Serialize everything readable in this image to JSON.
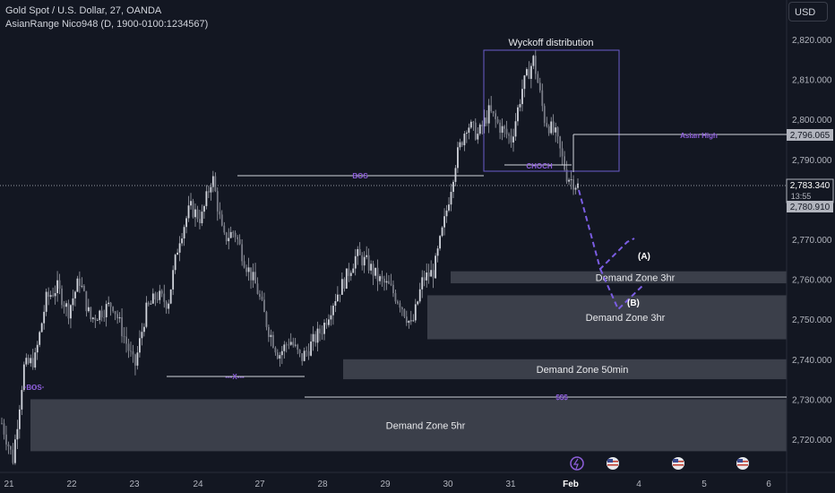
{
  "header": {
    "symbol_line": "Gold Spot / U.S. Dollar, 27, OANDA",
    "indicator_line": "AsianRange Nico948 (D, 1900-0100:1234567)"
  },
  "currency_button": "USD",
  "chart_data": {
    "type": "candlestick",
    "title": "Gold Spot / U.S. Dollar, 27, OANDA",
    "y_axis": {
      "ylim": [
        2714,
        2824
      ],
      "tick_labels": [
        "2,720.000",
        "2,730.000",
        "2,740.000",
        "2,750.000",
        "2,760.000",
        "2,770.000",
        "2,780.000",
        "2,790.000",
        "2,800.000",
        "2,810.000",
        "2,820.000"
      ],
      "ticks": [
        2720,
        2730,
        2740,
        2750,
        2760,
        2770,
        2780,
        2790,
        2800,
        2810,
        2820
      ]
    },
    "x_axis": {
      "tick_labels": [
        "21",
        "22",
        "23",
        "24",
        "27",
        "28",
        "29",
        "30",
        "31",
        "Feb",
        "4",
        "5",
        "6"
      ]
    },
    "price_badges": {
      "asian_high": "2,796.065",
      "last_price": "2,783.340",
      "countdown": "13:55",
      "lower_badge": "2,780.910"
    },
    "price_path": [
      [
        0,
        2724
      ],
      [
        1,
        2715
      ],
      [
        2,
        2738
      ],
      [
        3,
        2740
      ],
      [
        4,
        2755
      ],
      [
        5,
        2758
      ],
      [
        6,
        2752
      ],
      [
        7,
        2760
      ],
      [
        8,
        2750
      ],
      [
        9,
        2752
      ],
      [
        10,
        2754
      ],
      [
        11,
        2746
      ],
      [
        12,
        2738
      ],
      [
        13,
        2752
      ],
      [
        14,
        2756
      ],
      [
        15,
        2754
      ],
      [
        16,
        2770
      ],
      [
        17,
        2778
      ],
      [
        18,
        2775
      ],
      [
        19,
        2786
      ],
      [
        20,
        2770
      ],
      [
        21,
        2772
      ],
      [
        22,
        2764
      ],
      [
        23,
        2758
      ],
      [
        24,
        2748
      ],
      [
        25,
        2741
      ],
      [
        26,
        2745
      ],
      [
        27,
        2740
      ],
      [
        28,
        2744
      ],
      [
        29,
        2748
      ],
      [
        30,
        2755
      ],
      [
        31,
        2760
      ],
      [
        32,
        2766
      ],
      [
        33,
        2764
      ],
      [
        34,
        2760
      ],
      [
        35,
        2758
      ],
      [
        36,
        2754
      ],
      [
        37,
        2748
      ],
      [
        38,
        2760
      ],
      [
        39,
        2762
      ],
      [
        40,
        2775
      ],
      [
        41,
        2790
      ],
      [
        42,
        2799
      ],
      [
        43,
        2796
      ],
      [
        44,
        2802
      ],
      [
        45,
        2798
      ],
      [
        46,
        2795
      ],
      [
        47,
        2808
      ],
      [
        48,
        2815
      ],
      [
        49,
        2800
      ],
      [
        50,
        2796
      ],
      [
        51,
        2786
      ],
      [
        52,
        2783.34
      ]
    ],
    "zones": [
      {
        "label": "Demand Zone 5hr",
        "top": 2730,
        "bottom": 2717
      },
      {
        "label": "Demand Zone 50min",
        "top": 2740,
        "bottom": 2735
      },
      {
        "label": "Demand Zone 3hr",
        "top": 2756,
        "bottom": 2745
      },
      {
        "label": "Demand Zone 3hr",
        "top": 2762,
        "bottom": 2759
      }
    ],
    "annotations": {
      "wyckoff_label": "Wyckoff distribution",
      "choch": "CHOCH",
      "bos_top": "BOS",
      "bos_left": "BOS",
      "asian_high": "Asian High",
      "x_marker": "---X---",
      "sss": "$$$",
      "point_a": "(A)",
      "point_b": "(B)"
    },
    "colors": {
      "background": "#131722",
      "candles": "#b2b5be",
      "annotation": "#8e5fdb",
      "zone": "#5d606b"
    }
  }
}
